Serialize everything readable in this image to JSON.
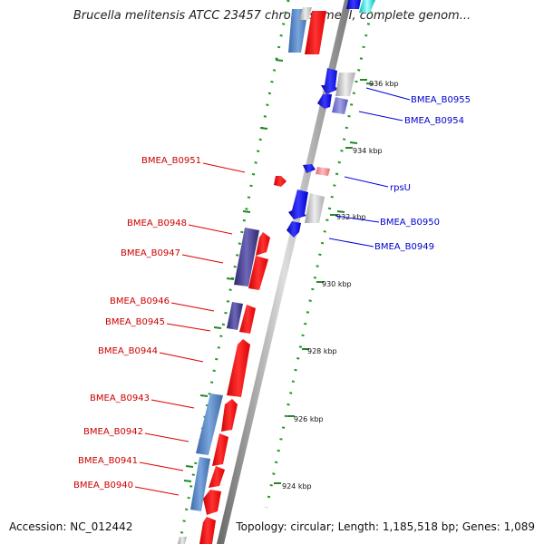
{
  "title": "Brucella melitensis ATCC 23457 chromosome II, complete genom...",
  "footer": {
    "accession": "Accession: NC_012442",
    "summary": "Topology: circular; Length: 1,185,518 bp; Genes: 1,089"
  },
  "scale_ticks": [
    "936 kbp",
    "934 kbp",
    "932 kbp",
    "930 kbp",
    "928 kbp",
    "926 kbp",
    "924 kbp"
  ],
  "genes": [
    {
      "label": "BMEA_B0955",
      "color": "#0000cc",
      "strand": "plus"
    },
    {
      "label": "BMEA_B0954",
      "color": "#0000cc",
      "strand": "plus"
    },
    {
      "label": "rpsU",
      "color": "#0000cc",
      "strand": "plus"
    },
    {
      "label": "BMEA_B0950",
      "color": "#0000cc",
      "strand": "plus"
    },
    {
      "label": "BMEA_B0949",
      "color": "#0000cc",
      "strand": "plus"
    },
    {
      "label": "BMEA_B0951",
      "color": "#cc0000",
      "strand": "minus"
    },
    {
      "label": "BMEA_B0948",
      "color": "#cc0000",
      "strand": "minus"
    },
    {
      "label": "BMEA_B0947",
      "color": "#cc0000",
      "strand": "minus"
    },
    {
      "label": "BMEA_B0946",
      "color": "#cc0000",
      "strand": "minus"
    },
    {
      "label": "BMEA_B0945",
      "color": "#cc0000",
      "strand": "minus"
    },
    {
      "label": "BMEA_B0944",
      "color": "#cc0000",
      "strand": "minus"
    },
    {
      "label": "BMEA_B0943",
      "color": "#cc0000",
      "strand": "minus"
    },
    {
      "label": "BMEA_B0942",
      "color": "#cc0000",
      "strand": "minus"
    },
    {
      "label": "BMEA_B0941",
      "color": "#cc0000",
      "strand": "minus"
    },
    {
      "label": "BMEA_B0940",
      "color": "#cc0000",
      "strand": "minus"
    }
  ],
  "colors": {
    "plus_cds": "#1010ee",
    "minus_cds": "#ee0000",
    "minus_orf": "#4a72b0",
    "plus_orf": "#5a5aa8",
    "minus_orf_dark": "#3f3a86",
    "rna": "#bbbbbb",
    "rna_red": "#ee8888",
    "backbone": "#888888",
    "dotted_track": "#229922"
  }
}
